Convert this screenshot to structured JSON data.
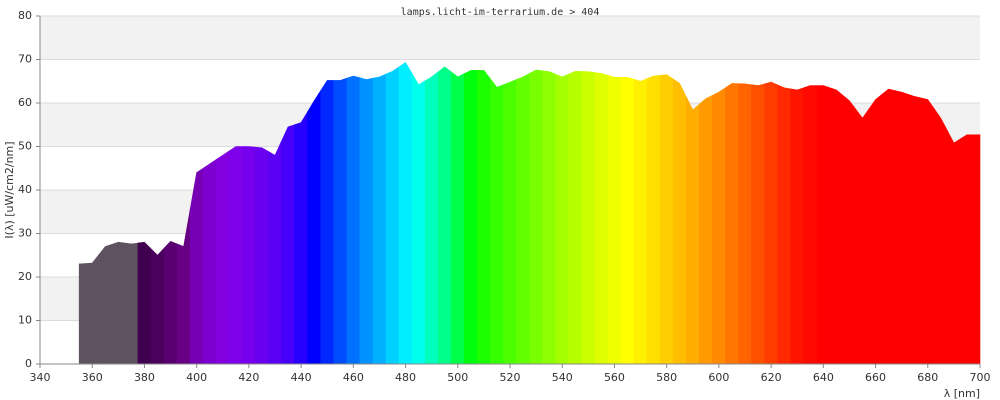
{
  "chart_data": {
    "type": "spectrum",
    "title": "lamps.licht-im-terrarium.de > 404",
    "xlabel": "λ [nm]",
    "ylabel": "I(λ) [uW/cm2/nm]",
    "x": [
      355,
      360,
      365,
      370,
      375,
      380,
      385,
      390,
      395,
      400,
      405,
      410,
      415,
      420,
      425,
      430,
      435,
      440,
      445,
      450,
      455,
      460,
      465,
      470,
      475,
      480,
      485,
      490,
      495,
      500,
      505,
      510,
      515,
      520,
      525,
      530,
      535,
      540,
      545,
      550,
      555,
      560,
      565,
      570,
      575,
      580,
      585,
      590,
      595,
      600,
      605,
      610,
      615,
      620,
      625,
      630,
      635,
      640,
      645,
      650,
      655,
      660,
      665,
      670,
      675,
      680,
      685,
      690,
      695,
      700
    ],
    "values": [
      23,
      23.2,
      27,
      28,
      27.6,
      28,
      25,
      28.2,
      27,
      44,
      46,
      48,
      50,
      50,
      49.7,
      48,
      54.5,
      55.5,
      60.5,
      65.2,
      65.2,
      66.2,
      65.4,
      66,
      67.3,
      69.3,
      64.2,
      66,
      68.3,
      66,
      67.5,
      67.5,
      63.6,
      64.8,
      66,
      67.6,
      67.2,
      66,
      67.3,
      67.2,
      66.8,
      65.9,
      65.9,
      65,
      66.2,
      66.5,
      64.5,
      58.4,
      61,
      62.5,
      64.5,
      64.4,
      64,
      64.8,
      63.5,
      63,
      64,
      64,
      63,
      60.5,
      56.5,
      60.8,
      63.2,
      62.5,
      61.5,
      60.8,
      56.5,
      50.8,
      52.7,
      52.7
    ],
    "colors": [
      "#5f5260",
      "#5f5260",
      "#5f5260",
      "#5f5260",
      "#5f5260",
      "#3f004f",
      "#4b005e",
      "#58006f",
      "#670082",
      "#7600b4",
      "#7e00d0",
      "#8300e0",
      "#7f00eb",
      "#7600ed",
      "#6a00f0",
      "#5b00f5",
      "#4600fa",
      "#2800ff",
      "#0000ff",
      "#0028ff",
      "#004cff",
      "#0070ff",
      "#0092ff",
      "#00b0ff",
      "#00d0ff",
      "#00eeff",
      "#00ffec",
      "#00ffbc",
      "#00ff8a",
      "#00ff4a",
      "#00ff0c",
      "#1cff00",
      "#36ff00",
      "#4cff00",
      "#62ff00",
      "#7aff00",
      "#8eff00",
      "#a3ff00",
      "#b6ff00",
      "#caff00",
      "#ddff00",
      "#f0ff00",
      "#ffff00",
      "#ffef00",
      "#ffdf00",
      "#ffce00",
      "#ffbe00",
      "#ffad00",
      "#ff9b00",
      "#ff8900",
      "#ff7700",
      "#ff6400",
      "#ff5000",
      "#ff3c00",
      "#ff2800",
      "#ff1400",
      "#ff0a00",
      "#ff0000",
      "#ff0000",
      "#ff0000",
      "#ff0000",
      "#ff0000",
      "#ff0000",
      "#ff0000",
      "#ff0000",
      "#ff0000",
      "#ff0000",
      "#ff0000",
      "#ff0000",
      "#ff0000"
    ],
    "xlim": [
      340,
      700
    ],
    "ylim": [
      0,
      80
    ],
    "xticks": [
      340,
      360,
      380,
      400,
      420,
      440,
      460,
      480,
      500,
      520,
      540,
      560,
      580,
      600,
      620,
      640,
      660,
      680,
      700
    ],
    "yticks": [
      0,
      10,
      20,
      30,
      40,
      50,
      60,
      70,
      80
    ],
    "grid": true
  }
}
